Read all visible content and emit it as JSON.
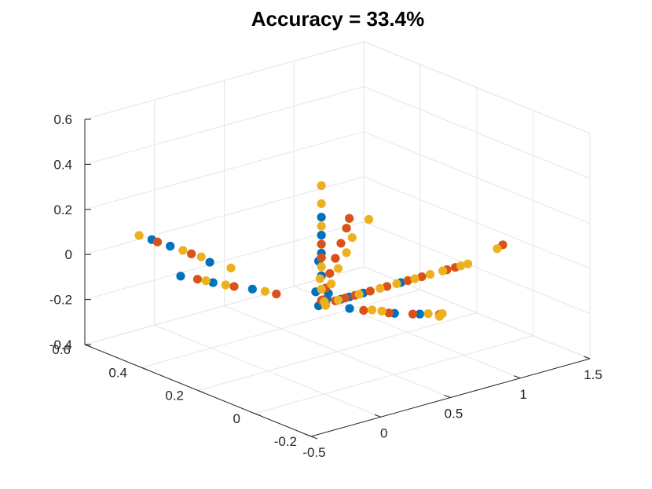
{
  "chart_data": {
    "type": "scatter",
    "title": "Accuracy = 33.4%",
    "xlabel": "",
    "ylabel": "",
    "zlabel": "",
    "xlim": [
      -0.5,
      1.5
    ],
    "ylim": [
      -0.2,
      0.6
    ],
    "zlim": [
      -0.4,
      0.6
    ],
    "x_ticks": [
      "-0.5",
      "0",
      "0.5",
      "1",
      "1.5"
    ],
    "y_ticks": [
      "-0.2",
      "0",
      "0.2",
      "0.4",
      "0.6"
    ],
    "z_ticks": [
      "-0.4",
      "-0.2",
      "0",
      "0.2",
      "0.4",
      "0.6"
    ],
    "grid": true,
    "colors": [
      "#0072BD",
      "#D95319",
      "#EDB120"
    ],
    "series": [
      {
        "color": "#0072BD",
        "points": [
          [
            0.0,
            0.0,
            0.0
          ],
          [
            0.02,
            0.0,
            0.02
          ],
          [
            -0.02,
            0.01,
            -0.01
          ],
          [
            0.01,
            -0.01,
            0.05
          ],
          [
            0.0,
            0.01,
            0.12
          ],
          [
            0.0,
            0.01,
            0.22
          ],
          [
            0.0,
            0.01,
            0.3
          ],
          [
            0.0,
            0.01,
            0.38
          ],
          [
            0.12,
            0.0,
            0.0
          ],
          [
            0.18,
            0.0,
            0.0
          ],
          [
            0.28,
            0.0,
            0.0
          ],
          [
            0.55,
            0.0,
            0.0
          ],
          [
            -0.15,
            0.18,
            0.0
          ],
          [
            -0.25,
            0.27,
            0.0
          ],
          [
            -0.32,
            0.35,
            0.0
          ],
          [
            -0.05,
            0.38,
            0.0
          ],
          [
            -0.05,
            0.52,
            0.0
          ],
          [
            -0.06,
            0.58,
            0.0
          ],
          [
            0.06,
            -0.06,
            0.0
          ],
          [
            0.2,
            -0.15,
            0.0
          ],
          [
            0.3,
            -0.19,
            0.0
          ],
          [
            0.02,
            0.04,
            0.03
          ],
          [
            0.0,
            0.02,
            0.18
          ]
        ]
      },
      {
        "color": "#D95319",
        "points": [
          [
            0.01,
            0.0,
            0.0
          ],
          [
            0.0,
            0.01,
            0.01
          ],
          [
            -0.01,
            0.0,
            0.02
          ],
          [
            0.03,
            0.01,
            0.06
          ],
          [
            0.06,
            0.01,
            0.12
          ],
          [
            0.1,
            0.01,
            0.18
          ],
          [
            0.14,
            0.01,
            0.24
          ],
          [
            0.18,
            0.01,
            0.3
          ],
          [
            0.2,
            0.01,
            0.34
          ],
          [
            0.08,
            0.0,
            0.0
          ],
          [
            0.15,
            0.0,
            0.0
          ],
          [
            0.22,
            0.0,
            0.0
          ],
          [
            0.33,
            0.0,
            0.0
          ],
          [
            0.45,
            0.0,
            0.0
          ],
          [
            0.6,
            0.0,
            0.0
          ],
          [
            0.7,
            0.0,
            0.0
          ],
          [
            0.88,
            0.0,
            0.0
          ],
          [
            0.94,
            0.0,
            0.0
          ],
          [
            1.26,
            -0.01,
            0.05
          ],
          [
            -0.1,
            0.12,
            0.0
          ],
          [
            -0.2,
            0.22,
            0.0
          ],
          [
            -0.28,
            0.31,
            0.0
          ],
          [
            -0.04,
            0.45,
            0.0
          ],
          [
            -0.06,
            0.56,
            0.0
          ],
          [
            0.1,
            -0.09,
            0.0
          ],
          [
            0.18,
            -0.14,
            0.0
          ],
          [
            0.27,
            -0.18,
            0.0
          ],
          [
            0.38,
            -0.22,
            0.0
          ],
          [
            0.0,
            0.01,
            0.2
          ],
          [
            0.0,
            0.01,
            0.26
          ]
        ]
      },
      {
        "color": "#EDB120",
        "points": [
          [
            0.0,
            0.0,
            0.01
          ],
          [
            0.02,
            0.01,
            0.0
          ],
          [
            -0.01,
            -0.01,
            0.0
          ],
          [
            0.0,
            0.01,
            0.52
          ],
          [
            0.0,
            0.01,
            0.44
          ],
          [
            0.0,
            0.01,
            0.34
          ],
          [
            0.0,
            0.01,
            0.16
          ],
          [
            0.32,
            0.0,
            0.32
          ],
          [
            0.2,
            0.0,
            0.26
          ],
          [
            0.16,
            0.0,
            0.2
          ],
          [
            0.1,
            0.0,
            0.14
          ],
          [
            0.05,
            0.0,
            0.08
          ],
          [
            0.1,
            0.0,
            0.0
          ],
          [
            0.25,
            0.0,
            0.0
          ],
          [
            0.4,
            0.0,
            0.0
          ],
          [
            0.52,
            0.0,
            0.0
          ],
          [
            0.65,
            0.0,
            0.0
          ],
          [
            0.76,
            0.0,
            0.0
          ],
          [
            0.85,
            0.0,
            0.0
          ],
          [
            0.98,
            0.0,
            0.0
          ],
          [
            1.03,
            0.0,
            0.0
          ],
          [
            1.22,
            -0.01,
            0.04
          ],
          [
            -0.12,
            0.15,
            0.0
          ],
          [
            -0.22,
            0.24,
            0.0
          ],
          [
            -0.26,
            0.29,
            0.0
          ],
          [
            -0.02,
            0.32,
            0.0
          ],
          [
            -0.03,
            0.42,
            0.0
          ],
          [
            -0.04,
            0.48,
            0.0
          ],
          [
            -0.07,
            0.62,
            0.0
          ],
          [
            0.14,
            -0.1,
            0.0
          ],
          [
            0.17,
            -0.12,
            0.0
          ],
          [
            0.34,
            -0.2,
            0.0
          ],
          [
            0.4,
            -0.22,
            0.0
          ],
          [
            0.36,
            -0.23,
            0.0
          ],
          [
            0.0,
            0.01,
            0.06
          ],
          [
            0.01,
            0.02,
            0.1
          ]
        ]
      }
    ]
  }
}
